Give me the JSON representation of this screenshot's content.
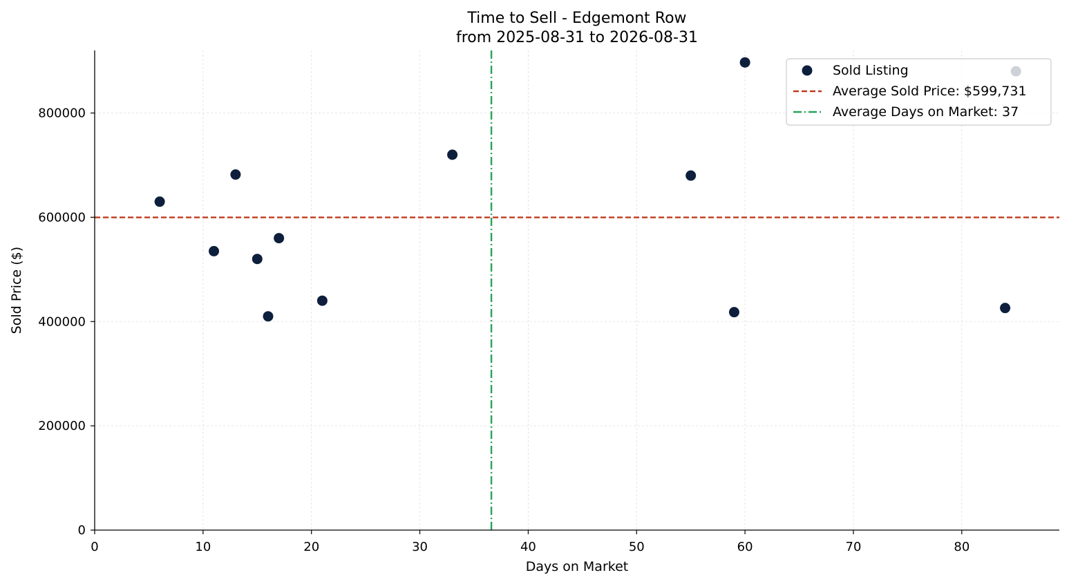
{
  "chart_data": {
    "type": "scatter",
    "title": "Time to Sell - Edgemont Row",
    "subtitle": "from 2025-08-31 to 2026-08-31",
    "xlabel": "Days on Market",
    "ylabel": "Sold Price ($)",
    "xlim": [
      0,
      89
    ],
    "ylim": [
      0,
      920000
    ],
    "xticks": [
      0,
      10,
      20,
      30,
      40,
      50,
      60,
      70,
      80
    ],
    "yticks": [
      0,
      200000,
      400000,
      600000,
      800000
    ],
    "grid": true,
    "legend_position": "top-right",
    "series": [
      {
        "name": "Sold Listing",
        "color": "#0d1f3c",
        "points": [
          {
            "x": 6,
            "y": 630000
          },
          {
            "x": 11,
            "y": 535000
          },
          {
            "x": 13,
            "y": 682000
          },
          {
            "x": 15,
            "y": 520000
          },
          {
            "x": 16,
            "y": 410000
          },
          {
            "x": 17,
            "y": 560000
          },
          {
            "x": 21,
            "y": 440000
          },
          {
            "x": 33,
            "y": 720000
          },
          {
            "x": 55,
            "y": 680000
          },
          {
            "x": 59,
            "y": 418000
          },
          {
            "x": 60,
            "y": 897000
          },
          {
            "x": 84,
            "y": 426000
          },
          {
            "x": 85,
            "y": 880000
          }
        ]
      }
    ],
    "reference_lines": [
      {
        "orientation": "horizontal",
        "value": 599731,
        "label": "Average Sold Price: $599,731",
        "color": "#c0391f",
        "style": "dashed"
      },
      {
        "orientation": "vertical",
        "value": 36.6,
        "label": "Average Days on Market: 37",
        "color": "#27a35a",
        "style": "dashdot"
      }
    ]
  }
}
